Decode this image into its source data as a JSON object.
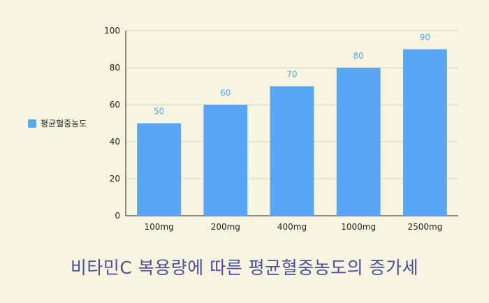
{
  "chart_data": {
    "type": "bar",
    "title": "비타민C 복용량에 따른 평균혈중농도의 증가세",
    "categories": [
      "100mg",
      "200mg",
      "400mg",
      "1000mg",
      "2500mg"
    ],
    "series": [
      {
        "name": "평균혈중농도",
        "values": [
          50,
          60,
          70,
          80,
          90
        ]
      }
    ],
    "ylim": [
      0,
      100
    ],
    "yticks": [
      0,
      20,
      40,
      60,
      80,
      100
    ],
    "xlabel": "",
    "ylabel": "",
    "grid": true,
    "legend_position": "left",
    "colors": {
      "bar": "#59a6f4",
      "label": "#59a6f4",
      "grid": "#d8d6c0",
      "title": "#4a4f9f"
    }
  }
}
